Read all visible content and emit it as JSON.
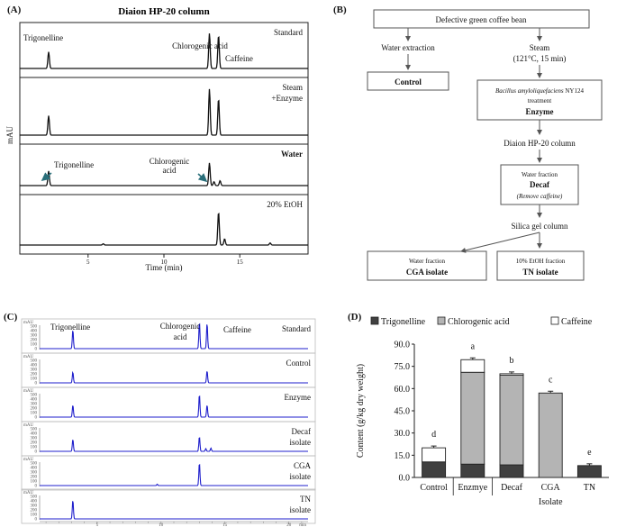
{
  "panels": {
    "A": {
      "letter": "(A)",
      "title": "Diaion HP-20 column",
      "ylabel": "mAU",
      "xlabel": "Time (min)",
      "xticks": [
        "5",
        "10",
        "15"
      ],
      "traces": [
        {
          "label": "Standard",
          "peaks": [
            {
              "x": 2.4,
              "h": 0.45
            },
            {
              "x": 13.0,
              "h": 0.95
            },
            {
              "x": 13.6,
              "h": 0.9
            }
          ],
          "annotations": [
            "Trigonelline",
            "Chlorogenic acid",
            "Caffeine"
          ]
        },
        {
          "label": "Steam\n+Enzyme",
          "peaks": [
            {
              "x": 2.4,
              "h": 0.4
            },
            {
              "x": 13.0,
              "h": 0.95
            },
            {
              "x": 13.6,
              "h": 0.75
            }
          ]
        },
        {
          "label": "Water",
          "peaks": [
            {
              "x": 2.4,
              "h": 0.45
            },
            {
              "x": 13.0,
              "h": 0.7
            },
            {
              "x": 13.3,
              "h": 0.12
            },
            {
              "x": 13.7,
              "h": 0.15
            }
          ],
          "annotations": [
            "Trigonelline",
            "Chlorogenic\nacid"
          ]
        },
        {
          "label": "20% EtOH",
          "peaks": [
            {
              "x": 6.0,
              "h": 0.03
            },
            {
              "x": 13.6,
              "h": 0.8
            },
            {
              "x": 14.0,
              "h": 0.15
            },
            {
              "x": 17.0,
              "h": 0.05
            }
          ]
        }
      ]
    },
    "B": {
      "letter": "(B)",
      "start": "Defective green coffee bean",
      "water_extraction": "Water extraction",
      "control": "Control",
      "steam": "Steam",
      "steam_cond": "(121°C, 15 min)",
      "enzyme_species": "Bacillus amyloliquefaciens",
      "enzyme_strain": " NY124",
      "enzyme_treatment": "treatment",
      "enzyme": "Enzyme",
      "column1": "Diaion HP-20 column",
      "water_fraction": "Water fraction",
      "decaf": "Decaf",
      "remove_caffeine": "(Remove caffeine)",
      "column2": "Silica gel column",
      "cga_fraction": "Water fraction",
      "cga_isolate": "CGA isolate",
      "tn_fraction": "10% EtOH fraction",
      "tn_isolate": "TN isolate"
    },
    "C": {
      "letter": "(C)",
      "unit": "mAU",
      "xunit": "min",
      "yticks": [
        "500",
        "400",
        "300",
        "200",
        "100",
        "0"
      ],
      "xticks": [
        "5",
        "10",
        "15",
        "20"
      ],
      "annotations": [
        "Trigonelline",
        "Chlorogenic\nacid",
        "Caffeine"
      ],
      "traces": [
        {
          "label": "Standard",
          "peaks": [
            {
              "x": 3.1,
              "h": 0.7
            },
            {
              "x": 13.0,
              "h": 1.0
            },
            {
              "x": 13.6,
              "h": 0.95
            }
          ]
        },
        {
          "label": "Control",
          "peaks": [
            {
              "x": 3.1,
              "h": 0.4
            },
            {
              "x": 13.6,
              "h": 0.45
            }
          ]
        },
        {
          "label": "Enzyme",
          "peaks": [
            {
              "x": 3.1,
              "h": 0.45
            },
            {
              "x": 13.0,
              "h": 0.85
            },
            {
              "x": 13.6,
              "h": 0.45
            }
          ]
        },
        {
          "label": "Decaf\nisolate",
          "peaks": [
            {
              "x": 3.1,
              "h": 0.45
            },
            {
              "x": 13.0,
              "h": 0.55
            },
            {
              "x": 13.5,
              "h": 0.1
            },
            {
              "x": 13.9,
              "h": 0.12
            }
          ]
        },
        {
          "label": "CGA\nisolate",
          "peaks": [
            {
              "x": 9.7,
              "h": 0.05
            },
            {
              "x": 13.0,
              "h": 0.85
            }
          ]
        },
        {
          "label": "TN\nisolate",
          "peaks": [
            {
              "x": 3.1,
              "h": 0.7
            }
          ]
        }
      ]
    },
    "D": {
      "letter": "(D)"
    }
  },
  "chart_data": {
    "type": "bar",
    "stacked": true,
    "categories": [
      "Control",
      "Enzmye",
      "Decaf",
      "CGA",
      "TN"
    ],
    "series": [
      {
        "name": "Trigonelline",
        "values": [
          10.5,
          9.0,
          8.5,
          0,
          8.0
        ],
        "color": "#404040"
      },
      {
        "name": "Chlorogenic acid",
        "values": [
          0,
          62.0,
          60.5,
          57.0,
          0
        ],
        "color": "#b4b4b4"
      },
      {
        "name": "Caffeine",
        "values": [
          9.5,
          8.5,
          1.0,
          0,
          0
        ],
        "color": "#ffffff"
      }
    ],
    "significance": [
      "d",
      "a",
      "b",
      "c",
      "e"
    ],
    "ylabel": "Content (g/kg dry weight)",
    "xlabel": "Isolate",
    "yticks": [
      "0.0",
      "15.0",
      "30.0",
      "45.0",
      "60.0",
      "75.0",
      "90.0"
    ],
    "ylim": [
      0,
      90
    ],
    "legend": "top"
  }
}
